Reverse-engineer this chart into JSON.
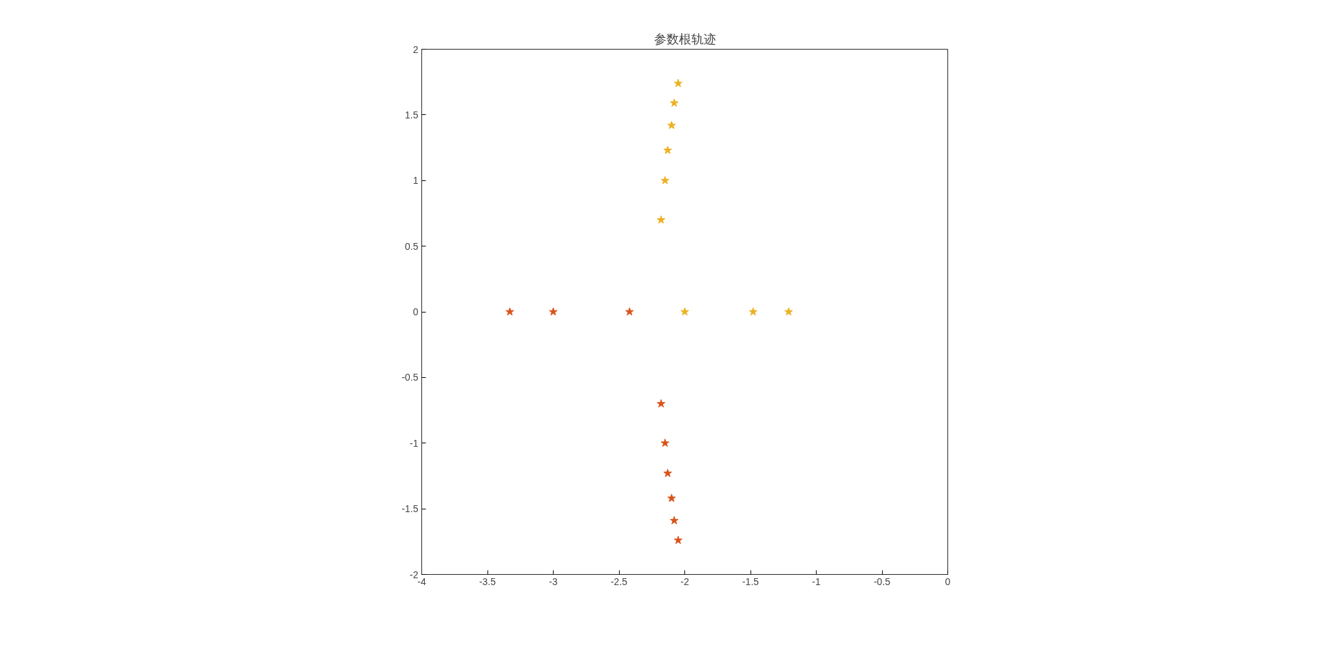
{
  "chart_data": {
    "type": "scatter",
    "title": "参数根轨迹",
    "marker": "star",
    "grid": false,
    "xlim": [
      -4,
      0
    ],
    "xticks": [
      -4,
      -3.5,
      -3,
      -2.5,
      -2,
      -1.5,
      -1,
      -0.5,
      0
    ],
    "ylim": [
      -2,
      2
    ],
    "yticks": [
      -2,
      -1.5,
      -1,
      -0.5,
      0,
      0.5,
      1,
      1.5,
      2
    ],
    "series": [
      {
        "color": "#d95319",
        "x": [
          -3.33,
          -3.0,
          -2.42,
          -2.18,
          -2.15,
          -2.13,
          -2.1,
          -2.08,
          -2.05
        ],
        "values": [
          0,
          0,
          0,
          -0.7,
          -1.0,
          -1.23,
          -1.42,
          -1.59,
          -1.74
        ]
      },
      {
        "color": "#edb120",
        "x": [
          -2.0,
          -1.48,
          -1.21,
          -2.18,
          -2.15,
          -2.13,
          -2.1,
          -2.08,
          -2.05
        ],
        "values": [
          0,
          0,
          0,
          0.7,
          1.0,
          1.23,
          1.42,
          1.59,
          1.74
        ]
      }
    ]
  }
}
